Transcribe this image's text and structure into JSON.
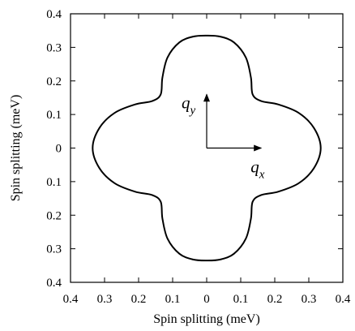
{
  "chart_data": {
    "type": "line",
    "title": "",
    "xlabel": "Spin splitting (meV)",
    "ylabel": "Spin splitting (meV)",
    "xlim": [
      -0.4,
      0.4
    ],
    "ylim": [
      -0.4,
      0.4
    ],
    "x_ticks": [
      -0.4,
      -0.3,
      -0.2,
      -0.1,
      0,
      0.1,
      0.2,
      0.3,
      0.4
    ],
    "y_ticks": [
      -0.4,
      -0.3,
      -0.2,
      -0.1,
      0,
      0.1,
      0.2,
      0.3,
      0.4
    ],
    "x_tick_labels": [
      "0.4",
      "0.3",
      "0.2",
      "0.1",
      "0",
      "0.1",
      "0.2",
      "0.3",
      "0.4"
    ],
    "y_tick_labels": [
      "0.4",
      "0.3",
      "0.2",
      "0.1",
      "0",
      "0.1",
      "0.2",
      "0.3",
      "0.4"
    ],
    "grid": false,
    "legend": "none",
    "series": [
      {
        "style": "closed curve, four-lobed",
        "color": "#000000",
        "x": [
          0.335,
          0.315,
          0.27,
          0.21,
          0.16,
          0.135,
          0.13,
          0.115,
          0.08,
          0.04,
          0,
          -0.04,
          -0.08,
          -0.115,
          -0.13,
          -0.135,
          -0.16,
          -0.21,
          -0.27,
          -0.315,
          -0.335,
          -0.315,
          -0.27,
          -0.21,
          -0.16,
          -0.135,
          -0.13,
          -0.115,
          -0.08,
          -0.04,
          0,
          0.04,
          0.08,
          0.115,
          0.13,
          0.135,
          0.16,
          0.21,
          0.27,
          0.315,
          0.335
        ],
        "y": [
          0,
          0.06,
          0.105,
          0.13,
          0.14,
          0.16,
          0.21,
          0.27,
          0.315,
          0.332,
          0.335,
          0.332,
          0.315,
          0.27,
          0.21,
          0.16,
          0.14,
          0.13,
          0.105,
          0.06,
          0,
          -0.06,
          -0.105,
          -0.13,
          -0.14,
          -0.16,
          -0.21,
          -0.27,
          -0.315,
          -0.332,
          -0.335,
          -0.332,
          -0.315,
          -0.27,
          -0.21,
          -0.16,
          -0.14,
          -0.13,
          -0.105,
          -0.06,
          0
        ]
      }
    ],
    "annotations": [
      {
        "type": "arrow",
        "from": [
          0,
          0
        ],
        "to": [
          0,
          0.16
        ],
        "label_main": "q",
        "label_sub": "y"
      },
      {
        "type": "arrow",
        "from": [
          0,
          0
        ],
        "to": [
          0.16,
          0
        ],
        "label_main": "q",
        "label_sub": "x"
      }
    ]
  }
}
